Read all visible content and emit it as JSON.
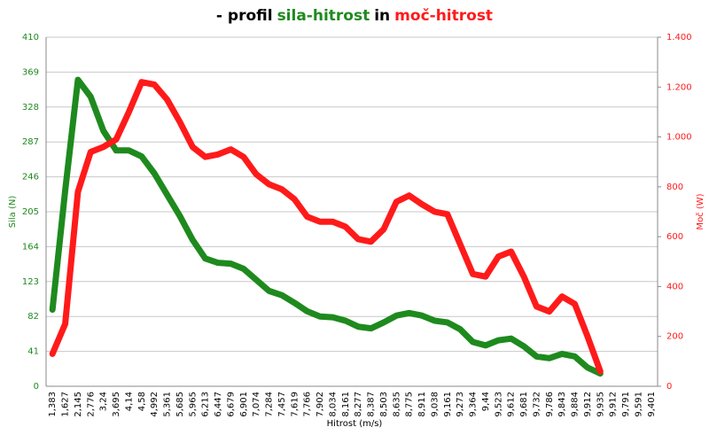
{
  "chart_data": {
    "type": "line",
    "title": [
      {
        "text": "- profil",
        "color": "#000000"
      },
      {
        "text": "sila-hitrost",
        "color": "#1e8a1e"
      },
      {
        "text": "in",
        "color": "#000000"
      },
      {
        "text": "moč-hitrost",
        "color": "#ff1a1a"
      }
    ],
    "x_label": "Hitrost (m/s)",
    "y_label": "Sila (N)",
    "y2_label": "Moč (W)",
    "categories": [
      "1,383",
      "1,627",
      "2,145",
      "2,776",
      "3,24",
      "3,695",
      "4,14",
      "4,58",
      "4,992",
      "5,361",
      "5,685",
      "5,965",
      "6,213",
      "6,447",
      "6,679",
      "6,901",
      "7,074",
      "7,284",
      "7,457",
      "7,619",
      "7,766",
      "7,902",
      "8,034",
      "8,161",
      "8,277",
      "8,387",
      "8,503",
      "8,635",
      "8,775",
      "8,911",
      "9,038",
      "9,161",
      "9,273",
      "9,364",
      "9,44",
      "9,523",
      "9,612",
      "9,681",
      "9,732",
      "9,786",
      "9,843",
      "9,884",
      "9,912",
      "9,935",
      "9,912",
      "9,791",
      "9,591",
      "9,401"
    ],
    "series": [
      {
        "name": "Sila (N)",
        "color": "#1e8a1e",
        "values": [
          90,
          230,
          360,
          340,
          300,
          277,
          277,
          270,
          250,
          225,
          200,
          172,
          150,
          145,
          144,
          138,
          125,
          112,
          107,
          98,
          88,
          82,
          81,
          77,
          70,
          68,
          75,
          83,
          86,
          83,
          77,
          75,
          67,
          52,
          48,
          54,
          56,
          47,
          35,
          33,
          38,
          35,
          22,
          15,
          null,
          null,
          null,
          null
        ]
      },
      {
        "name": "Moč (W)",
        "color": "#ff1a1a",
        "axis": "y2",
        "values": [
          130,
          250,
          780,
          940,
          960,
          990,
          1100,
          1220,
          1210,
          1150,
          1060,
          960,
          920,
          930,
          950,
          920,
          850,
          810,
          790,
          750,
          680,
          660,
          660,
          640,
          590,
          580,
          630,
          740,
          765,
          730,
          700,
          690,
          570,
          450,
          440,
          520,
          540,
          440,
          320,
          300,
          360,
          330,
          200,
          60,
          null,
          null,
          null,
          null
        ]
      }
    ],
    "ylim": [
      0,
      410
    ],
    "yticks": [
      0,
      41,
      82,
      123,
      164,
      205,
      246,
      287,
      328,
      369,
      410
    ],
    "y2lim": [
      0,
      1400
    ],
    "y2ticks": [
      0,
      200,
      400,
      600,
      800,
      {
        "value": 1000,
        "label": "1.000"
      },
      {
        "value": 1200,
        "label": "1.200"
      },
      {
        "value": 1400,
        "label": "1.400"
      }
    ],
    "grid": true
  }
}
